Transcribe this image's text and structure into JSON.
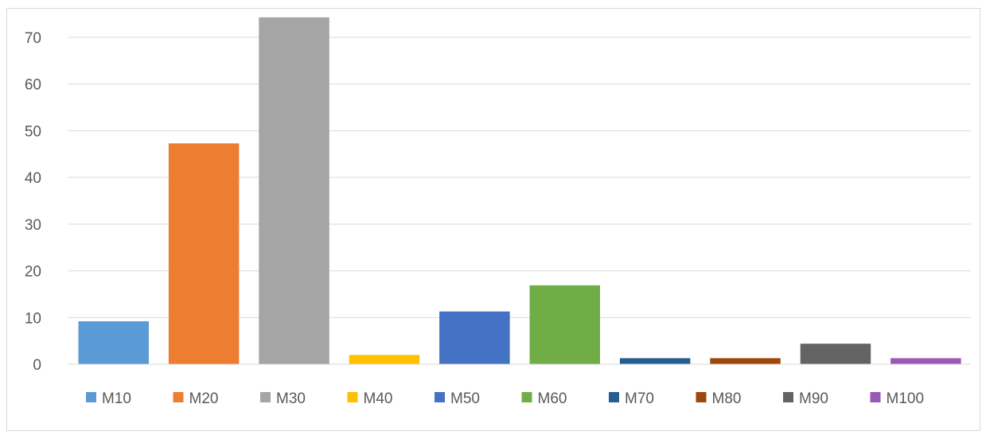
{
  "chart_data": {
    "type": "bar",
    "categories": [
      "M10",
      "M20",
      "M30",
      "M40",
      "M50",
      "M60",
      "M70",
      "M80",
      "M90",
      "M100"
    ],
    "values": [
      9.2,
      47.3,
      74.3,
      2.0,
      11.3,
      16.9,
      1.3,
      1.3,
      4.4,
      1.3
    ],
    "colors": [
      "#5b9bd5",
      "#ed7d31",
      "#a5a5a5",
      "#ffc000",
      "#4472c4",
      "#70ad47",
      "#255e91",
      "#9e480e",
      "#636363",
      "#9b59b6"
    ],
    "title": "",
    "xlabel": "",
    "ylabel": "",
    "ylim": [
      0,
      70
    ],
    "yticks": [
      0,
      10,
      20,
      30,
      40,
      50,
      60,
      70
    ],
    "grid": true,
    "legend": "bottom",
    "series_names": [
      "M10",
      "M20",
      "M30",
      "M40",
      "M50",
      "M60",
      "M70",
      "M80",
      "M90",
      "M100"
    ]
  }
}
